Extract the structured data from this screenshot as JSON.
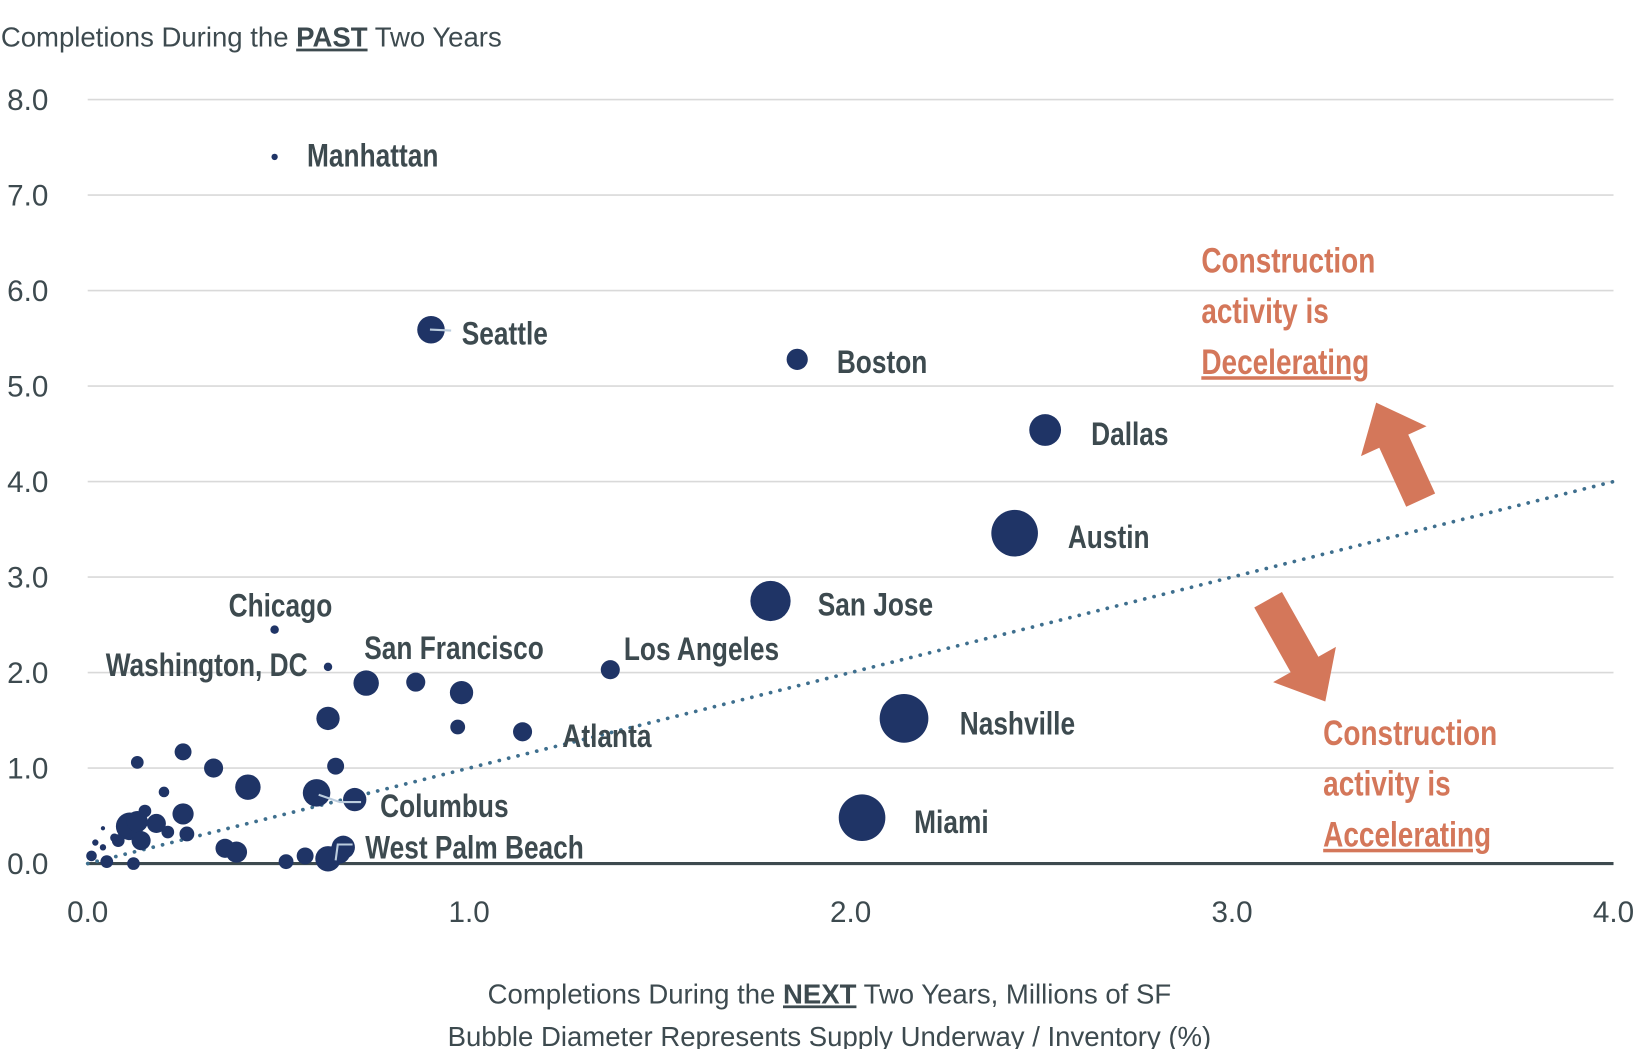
{
  "chart_data": {
    "type": "scatter",
    "subtype": "bubble",
    "ylabel": {
      "pre": "Completions During the ",
      "emph": "PAST",
      "post": " Two Years"
    },
    "xlabel": {
      "pre": "Completions During the ",
      "emph": "NEXT",
      "post": " Two Years, Millions of SF"
    },
    "xlabel_line2": "Bubble Diameter Represents Supply Underway / Inventory (%)",
    "xlim": [
      0,
      4
    ],
    "ylim": [
      0,
      8
    ],
    "xticks": [
      "0.0",
      "1.0",
      "2.0",
      "3.0",
      "4.0"
    ],
    "yticks": [
      "0.0",
      "1.0",
      "2.0",
      "3.0",
      "4.0",
      "5.0",
      "6.0",
      "7.0",
      "8.0"
    ],
    "grid": "horizontal",
    "trendline": {
      "style": "dotted",
      "from": [
        0,
        0
      ],
      "to": [
        4,
        4
      ],
      "color": "#3e6f8e"
    },
    "bubble_color": "#1f3466",
    "points": [
      {
        "label": "Manhattan",
        "x": 0.49,
        "y": 7.4,
        "size": 3
      },
      {
        "label": "Seattle",
        "x": 0.9,
        "y": 5.59,
        "size": 13
      },
      {
        "label": "Boston",
        "x": 1.86,
        "y": 5.28,
        "size": 10
      },
      {
        "label": "Dallas",
        "x": 2.51,
        "y": 4.54,
        "size": 15
      },
      {
        "label": "Austin",
        "x": 2.43,
        "y": 3.46,
        "size": 22
      },
      {
        "label": "San Jose",
        "x": 1.79,
        "y": 2.75,
        "size": 19
      },
      {
        "label": "Chicago",
        "x": 0.49,
        "y": 2.45,
        "size": 4
      },
      {
        "label": "Washington, DC",
        "x": 0.63,
        "y": 2.06,
        "size": 4
      },
      {
        "label": "San Francisco",
        "x": 0.73,
        "y": 1.89,
        "size": 12
      },
      {
        "label": "Los Angeles",
        "x": 1.37,
        "y": 2.03,
        "size": 9
      },
      {
        "label": "Nashville",
        "x": 2.14,
        "y": 1.52,
        "size": 23
      },
      {
        "label": "Atlanta",
        "x": 1.14,
        "y": 1.38,
        "size": 9
      },
      {
        "label": "Miami",
        "x": 2.03,
        "y": 0.48,
        "size": 22
      },
      {
        "label": "Columbus",
        "x": 0.7,
        "y": 0.67,
        "size": 11
      },
      {
        "label": "West Palm Beach",
        "x": 0.67,
        "y": 0.17,
        "size": 11
      },
      {
        "x": 0.86,
        "y": 1.9,
        "size": 9
      },
      {
        "x": 0.98,
        "y": 1.79,
        "size": 11
      },
      {
        "x": 0.97,
        "y": 1.43,
        "size": 7
      },
      {
        "x": 0.63,
        "y": 1.52,
        "size": 11
      },
      {
        "x": 0.65,
        "y": 1.02,
        "size": 8
      },
      {
        "x": 0.6,
        "y": 0.74,
        "size": 13
      },
      {
        "x": 0.42,
        "y": 0.8,
        "size": 12
      },
      {
        "x": 0.33,
        "y": 1.0,
        "size": 9
      },
      {
        "x": 0.25,
        "y": 1.17,
        "size": 8
      },
      {
        "x": 0.13,
        "y": 1.06,
        "size": 6
      },
      {
        "x": 0.2,
        "y": 0.75,
        "size": 5
      },
      {
        "x": 0.25,
        "y": 0.52,
        "size": 10
      },
      {
        "x": 0.18,
        "y": 0.42,
        "size": 9
      },
      {
        "x": 0.11,
        "y": 0.39,
        "size": 13
      },
      {
        "x": 0.13,
        "y": 0.44,
        "size": 10
      },
      {
        "x": 0.15,
        "y": 0.55,
        "size": 6
      },
      {
        "x": 0.26,
        "y": 0.31,
        "size": 7
      },
      {
        "x": 0.14,
        "y": 0.24,
        "size": 9
      },
      {
        "x": 0.21,
        "y": 0.33,
        "size": 6
      },
      {
        "x": 0.08,
        "y": 0.24,
        "size": 6
      },
      {
        "x": 0.07,
        "y": 0.27,
        "size": 4
      },
      {
        "x": 0.04,
        "y": 0.17,
        "size": 3
      },
      {
        "x": 0.02,
        "y": 0.22,
        "size": 3
      },
      {
        "x": 0.04,
        "y": 0.37,
        "size": 2
      },
      {
        "x": 0.01,
        "y": 0.08,
        "size": 5
      },
      {
        "x": 0.05,
        "y": 0.02,
        "size": 6
      },
      {
        "x": 0.12,
        "y": 0.0,
        "size": 6
      },
      {
        "x": 0.36,
        "y": 0.16,
        "size": 9
      },
      {
        "x": 0.39,
        "y": 0.12,
        "size": 10
      },
      {
        "x": 0.52,
        "y": 0.02,
        "size": 7
      },
      {
        "x": 0.57,
        "y": 0.08,
        "size": 8
      },
      {
        "x": 0.63,
        "y": 0.05,
        "size": 12
      },
      {
        "x": 0.66,
        "y": 0.11,
        "size": 10
      }
    ],
    "annotations": [
      {
        "lines": [
          "Construction",
          "activity is"
        ],
        "emph": "Decelerating",
        "arrow": "up",
        "color": "#d4775a"
      },
      {
        "lines": [
          "Construction",
          "activity is"
        ],
        "emph": "Accelerating",
        "arrow": "down",
        "color": "#d4775a"
      }
    ]
  }
}
